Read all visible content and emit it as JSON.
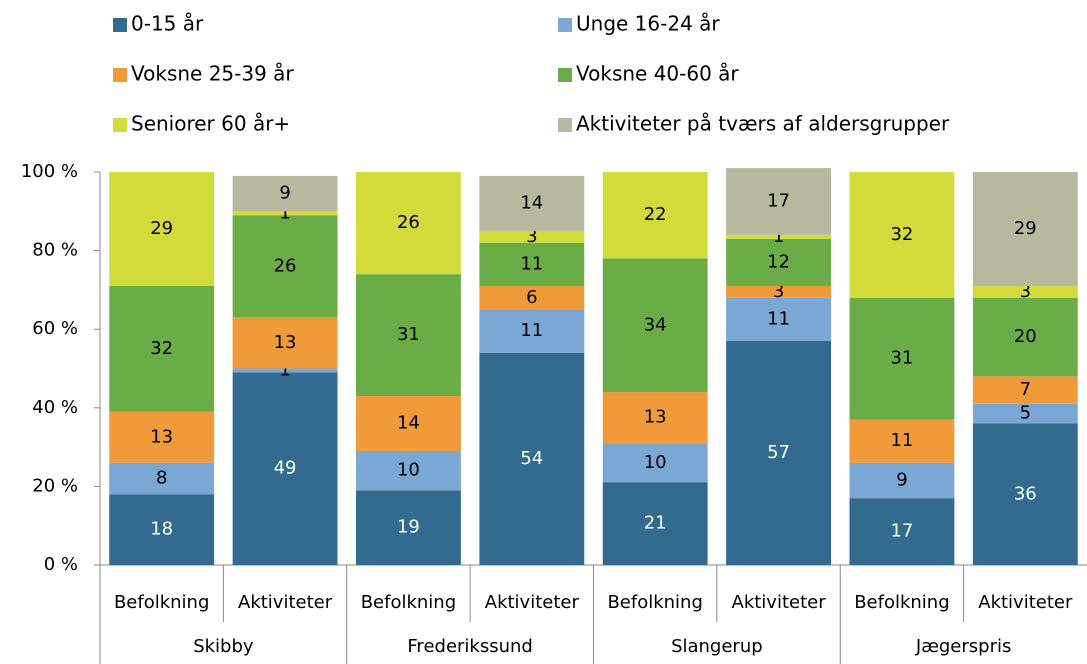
{
  "chart_data": {
    "type": "stacked-bar",
    "categories": [
      "Befolkning",
      "Aktiviteter",
      "Befolkning",
      "Aktiviteter",
      "Befolkning",
      "Aktiviteter",
      "Befolkning",
      "Aktiviteter"
    ],
    "groups": [
      "Skibby",
      "Frederikssund",
      "Slangerup",
      "Jægerspris"
    ],
    "series": [
      {
        "name": "0-15 år",
        "color": "#336a90",
        "values": [
          18,
          49,
          19,
          54,
          21,
          57,
          17,
          36
        ]
      },
      {
        "name": "Unge 16-24 år",
        "color": "#7ba7d4",
        "values": [
          8,
          1,
          10,
          11,
          10,
          11,
          9,
          5
        ]
      },
      {
        "name": "Voksne 25-39 år",
        "color": "#f09a3a",
        "values": [
          13,
          13,
          14,
          6,
          13,
          3,
          11,
          7
        ]
      },
      {
        "name": "Voksne 40-60 år",
        "color": "#6aad46",
        "values": [
          32,
          26,
          31,
          11,
          34,
          12,
          31,
          20
        ]
      },
      {
        "name": "Seniorer 60 år+",
        "color": "#d3db3b",
        "values": [
          29,
          1,
          26,
          3,
          22,
          1,
          32,
          3
        ]
      },
      {
        "name": "Aktiviteter på tværs af aldersgrupper",
        "color": "#b8b89e",
        "values": [
          null,
          9,
          null,
          14,
          null,
          17,
          null,
          29
        ]
      }
    ],
    "ylim": [
      0,
      100
    ],
    "yticks": [
      {
        "value": 0,
        "label": "0 %"
      },
      {
        "value": 20,
        "label": "20 %"
      },
      {
        "value": 40,
        "label": "40 %"
      },
      {
        "value": 60,
        "label": "60 %"
      },
      {
        "value": 80,
        "label": "80 %"
      },
      {
        "value": 100,
        "label": "100 %"
      }
    ],
    "legend": "top"
  }
}
